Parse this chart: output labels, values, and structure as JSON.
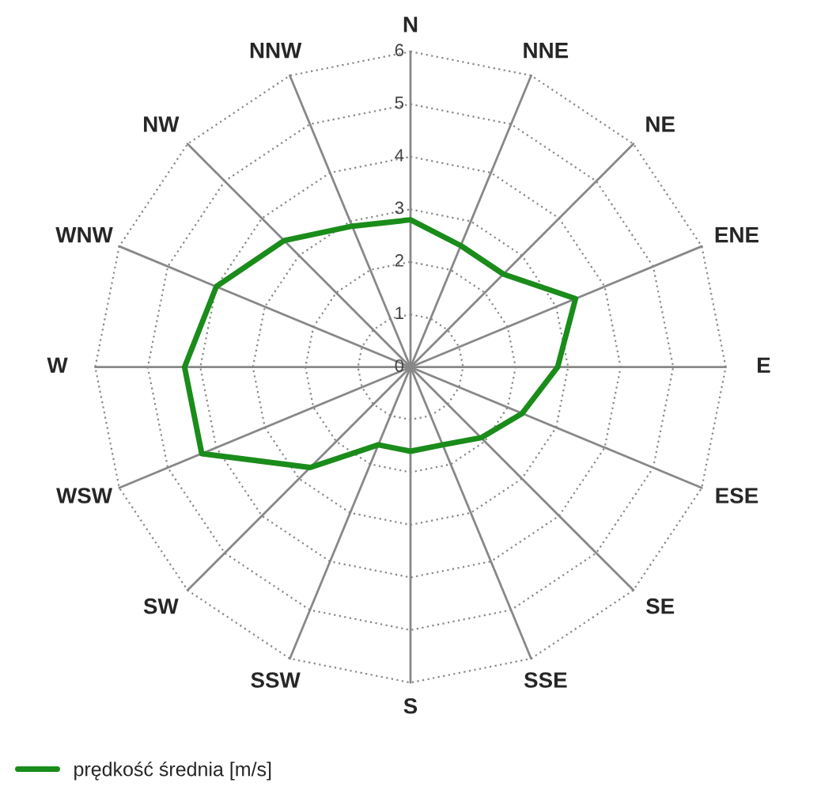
{
  "chart_data": {
    "type": "radar",
    "categories": [
      "N",
      "NNE",
      "NE",
      "ENE",
      "E",
      "ESE",
      "SE",
      "SSE",
      "S",
      "SSW",
      "SW",
      "WSW",
      "W",
      "WNW",
      "NW",
      "NNW"
    ],
    "series": [
      {
        "name": "prędkość średnia [m/s]",
        "color": "#1a8c1a",
        "values": [
          2.8,
          2.5,
          2.5,
          3.4,
          2.8,
          2.3,
          1.9,
          1.6,
          1.6,
          1.6,
          2.7,
          4.3,
          4.3,
          4.0,
          3.4,
          2.9
        ]
      }
    ],
    "ylim": [
      0,
      6
    ],
    "yticks": [
      0,
      1,
      2,
      3,
      4,
      5,
      6
    ],
    "grid": true,
    "legend": "bottom left"
  }
}
